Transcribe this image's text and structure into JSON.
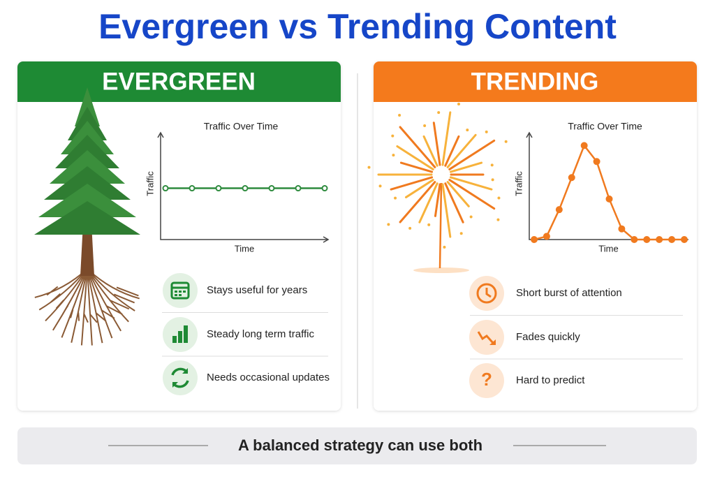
{
  "title": "Evergreen vs Trending Content",
  "panels": [
    {
      "heading": "EVERGREEN",
      "chart": {
        "type": "line",
        "title": "Traffic Over Time",
        "x_label": "Time",
        "y_label": "Traffic",
        "color": "#2e8b3e",
        "ylim": [
          0,
          100
        ],
        "values": [
          48,
          48,
          48,
          48,
          48,
          48,
          48
        ]
      },
      "features": [
        "Stays useful for years",
        "Steady long term traffic",
        "Needs occasional updates"
      ]
    },
    {
      "heading": "TRENDING",
      "chart": {
        "type": "line",
        "title": "Traffic Over Time",
        "x_label": "Time",
        "y_label": "Traffic",
        "color": "#f07a1f",
        "ylim": [
          0,
          100
        ],
        "values": [
          0,
          3,
          28,
          58,
          88,
          73,
          38,
          10,
          0,
          0,
          0,
          0,
          0
        ]
      },
      "features": [
        "Short burst of attention",
        "Fades quickly",
        "Hard to predict"
      ]
    }
  ],
  "footer": "A balanced strategy can use both"
}
